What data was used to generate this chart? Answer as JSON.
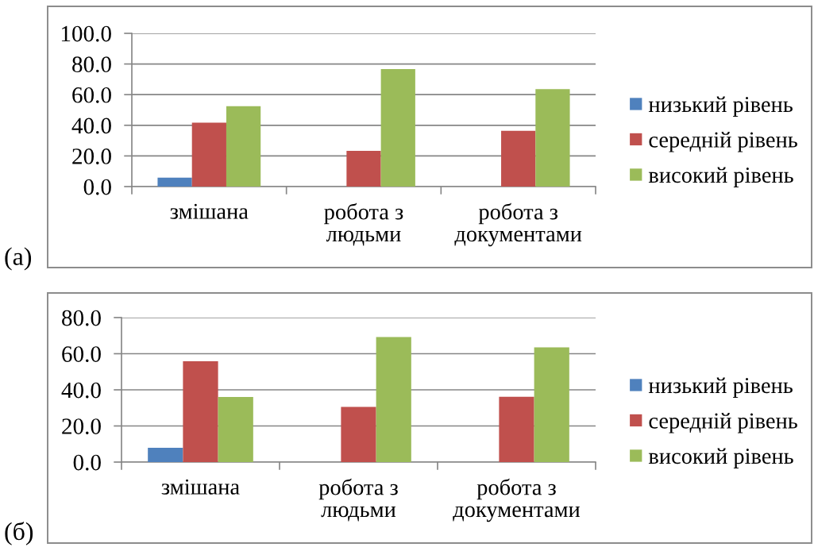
{
  "chart_data": [
    {
      "type": "bar",
      "categories": [
        "змішана",
        "робота з\nлюдьми",
        "робота з\nдокументами"
      ],
      "series": [
        {
          "name": "низький рівень",
          "color": "#4f81bd",
          "values": [
            5.8,
            0,
            0
          ]
        },
        {
          "name": "середній рівень",
          "color": "#c0504d",
          "values": [
            41.7,
            23.3,
            36.4
          ]
        },
        {
          "name": "високий рівень",
          "color": "#9bbb59",
          "values": [
            52.5,
            76.7,
            63.6
          ]
        }
      ],
      "ylim": [
        0,
        100
      ],
      "yticks": [
        {
          "value": 0,
          "label": "0.0"
        },
        {
          "value": 20,
          "label": "20.0"
        },
        {
          "value": 40,
          "label": "40.0"
        },
        {
          "value": 60,
          "label": "60.0"
        },
        {
          "value": 80,
          "label": "80.0"
        },
        {
          "value": 100,
          "label": "100.0"
        }
      ],
      "grid": "y",
      "legend": "right",
      "annotations": [
        "(а)"
      ]
    },
    {
      "type": "bar",
      "categories": [
        "змішана",
        "робота з\nлюдьми",
        "робота з\nдокументами"
      ],
      "series": [
        {
          "name": "низький рівень",
          "color": "#4f81bd",
          "values": [
            7.9,
            0,
            0
          ]
        },
        {
          "name": "середній рівень",
          "color": "#c0504d",
          "values": [
            55.8,
            30.6,
            36.2
          ]
        },
        {
          "name": "високий рівень",
          "color": "#9bbb59",
          "values": [
            36.0,
            69.2,
            63.5
          ]
        }
      ],
      "ylim": [
        0,
        80
      ],
      "yticks": [
        {
          "value": 0,
          "label": "0.0"
        },
        {
          "value": 20,
          "label": "20.0"
        },
        {
          "value": 40,
          "label": "40.0"
        },
        {
          "value": 60,
          "label": "60.0"
        },
        {
          "value": 80,
          "label": "80.0"
        }
      ],
      "grid": "y",
      "legend": "right",
      "annotations": [
        "(б)"
      ]
    }
  ]
}
